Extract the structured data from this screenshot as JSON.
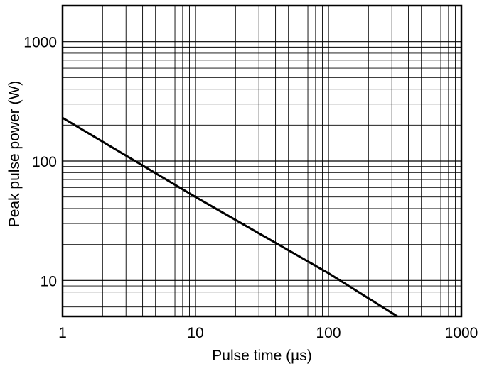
{
  "chart_data": {
    "type": "line",
    "title": "",
    "xlabel": "Pulse time (µs)",
    "ylabel": "Peak pulse power (W)",
    "x_scale": "log",
    "y_scale": "log",
    "xlim": [
      1,
      1000
    ],
    "ylim": [
      5,
      2000
    ],
    "x_ticks": [
      1,
      10,
      100,
      1000
    ],
    "x_tick_labels": [
      "1",
      "10",
      "100",
      "1000"
    ],
    "y_ticks": [
      10,
      100,
      1000
    ],
    "y_tick_labels": [
      "10",
      "100",
      "1000"
    ],
    "grid": true,
    "legend": "none",
    "series": [
      {
        "x": [
          1,
          10,
          100,
          330
        ],
        "y": [
          230,
          50,
          11.5,
          5
        ]
      }
    ]
  }
}
